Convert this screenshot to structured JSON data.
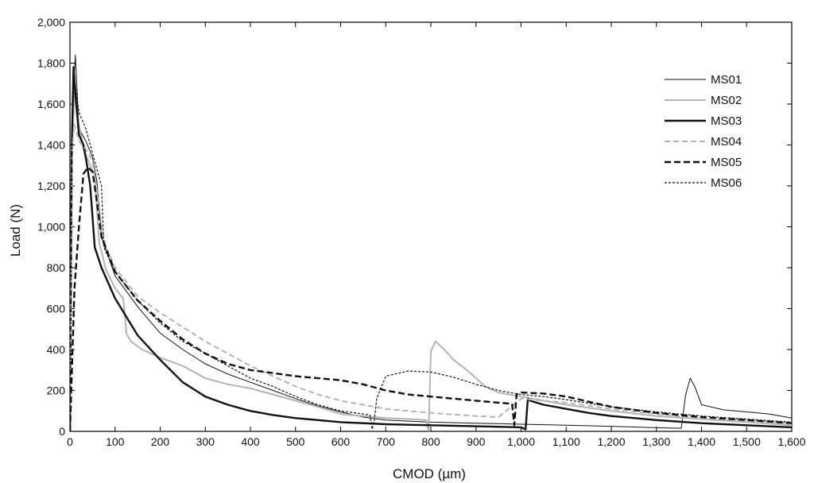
{
  "chart_data": {
    "type": "line",
    "xlabel": "CMOD (µm)",
    "ylabel": "Load (N)",
    "xlim": [
      0,
      1600
    ],
    "ylim": [
      0,
      2000
    ],
    "x_ticks": [
      0,
      100,
      200,
      300,
      400,
      500,
      600,
      700,
      800,
      900,
      1000,
      1100,
      1200,
      1300,
      1400,
      1500,
      1600
    ],
    "x_tick_labels": [
      "0",
      "100",
      "200",
      "300",
      "400",
      "500",
      "600",
      "700",
      "800",
      "900",
      "1,000",
      "1,100",
      "1,200",
      "1,300",
      "1,400",
      "1,500",
      "1,600"
    ],
    "y_ticks": [
      0,
      200,
      400,
      600,
      800,
      1000,
      1200,
      1400,
      1600,
      1800,
      2000
    ],
    "y_tick_labels": [
      "0",
      "200",
      "400",
      "600",
      "800",
      "1,000",
      "1,200",
      "1,400",
      "1,600",
      "1,800",
      "2,000"
    ],
    "grid": false,
    "legend_position": "top-right",
    "series": [
      {
        "name": "MS01",
        "color": "#111111",
        "style": "thin-solid",
        "points": [
          [
            0,
            0
          ],
          [
            6,
            1600
          ],
          [
            12,
            1840
          ],
          [
            20,
            1480
          ],
          [
            35,
            1420
          ],
          [
            50,
            1340
          ],
          [
            60,
            1220
          ],
          [
            70,
            950
          ],
          [
            100,
            760
          ],
          [
            150,
            610
          ],
          [
            200,
            480
          ],
          [
            250,
            400
          ],
          [
            300,
            330
          ],
          [
            350,
            280
          ],
          [
            400,
            240
          ],
          [
            450,
            200
          ],
          [
            500,
            160
          ],
          [
            550,
            125
          ],
          [
            600,
            95
          ],
          [
            650,
            70
          ],
          [
            700,
            55
          ],
          [
            800,
            45
          ],
          [
            900,
            40
          ],
          [
            1000,
            35
          ],
          [
            1100,
            30
          ],
          [
            1200,
            25
          ],
          [
            1300,
            18
          ],
          [
            1355,
            15
          ],
          [
            1365,
            180
          ],
          [
            1375,
            260
          ],
          [
            1385,
            220
          ],
          [
            1400,
            130
          ],
          [
            1450,
            105
          ],
          [
            1500,
            95
          ],
          [
            1550,
            85
          ],
          [
            1600,
            65
          ]
        ]
      },
      {
        "name": "MS02",
        "color": "#b3b3b3",
        "style": "solid",
        "points": [
          [
            0,
            0
          ],
          [
            5,
            1400
          ],
          [
            10,
            1650
          ],
          [
            20,
            1500
          ],
          [
            30,
            1380
          ],
          [
            45,
            1300
          ],
          [
            55,
            1250
          ],
          [
            65,
            920
          ],
          [
            80,
            790
          ],
          [
            100,
            700
          ],
          [
            118,
            650
          ],
          [
            122,
            560
          ],
          [
            125,
            480
          ],
          [
            135,
            440
          ],
          [
            160,
            400
          ],
          [
            200,
            360
          ],
          [
            250,
            320
          ],
          [
            300,
            260
          ],
          [
            350,
            230
          ],
          [
            400,
            210
          ],
          [
            450,
            180
          ],
          [
            500,
            150
          ],
          [
            550,
            120
          ],
          [
            600,
            85
          ],
          [
            650,
            75
          ],
          [
            700,
            65
          ],
          [
            750,
            60
          ],
          [
            790,
            55
          ],
          [
            795,
            0
          ],
          [
            800,
            390
          ],
          [
            810,
            440
          ],
          [
            830,
            400
          ],
          [
            850,
            350
          ],
          [
            880,
            300
          ],
          [
            920,
            220
          ],
          [
            950,
            190
          ],
          [
            1000,
            170
          ],
          [
            1050,
            150
          ],
          [
            1100,
            130
          ],
          [
            1200,
            100
          ],
          [
            1300,
            75
          ],
          [
            1400,
            60
          ],
          [
            1500,
            45
          ],
          [
            1600,
            30
          ]
        ]
      },
      {
        "name": "MS03",
        "color": "#111111",
        "style": "thick-solid",
        "points": [
          [
            0,
            0
          ],
          [
            4,
            1400
          ],
          [
            8,
            1780
          ],
          [
            14,
            1600
          ],
          [
            20,
            1450
          ],
          [
            30,
            1400
          ],
          [
            38,
            1300
          ],
          [
            45,
            1200
          ],
          [
            55,
            900
          ],
          [
            70,
            800
          ],
          [
            100,
            650
          ],
          [
            150,
            470
          ],
          [
            200,
            350
          ],
          [
            250,
            240
          ],
          [
            300,
            170
          ],
          [
            350,
            130
          ],
          [
            400,
            100
          ],
          [
            450,
            80
          ],
          [
            500,
            65
          ],
          [
            550,
            55
          ],
          [
            600,
            45
          ],
          [
            700,
            35
          ],
          [
            800,
            30
          ],
          [
            900,
            25
          ],
          [
            1000,
            20
          ],
          [
            1010,
            10
          ],
          [
            1015,
            160
          ],
          [
            1020,
            150
          ],
          [
            1050,
            130
          ],
          [
            1100,
            110
          ],
          [
            1150,
            90
          ],
          [
            1200,
            75
          ],
          [
            1300,
            55
          ],
          [
            1400,
            40
          ],
          [
            1500,
            30
          ],
          [
            1600,
            20
          ]
        ]
      },
      {
        "name": "MS04",
        "color": "#b3b3b3",
        "style": "dashed",
        "points": [
          [
            0,
            0
          ],
          [
            5,
            1400
          ],
          [
            10,
            1500
          ],
          [
            20,
            1420
          ],
          [
            35,
            1380
          ],
          [
            50,
            1320
          ],
          [
            60,
            1180
          ],
          [
            70,
            1000
          ],
          [
            80,
            900
          ],
          [
            100,
            800
          ],
          [
            150,
            660
          ],
          [
            200,
            580
          ],
          [
            250,
            510
          ],
          [
            300,
            440
          ],
          [
            350,
            380
          ],
          [
            400,
            320
          ],
          [
            450,
            270
          ],
          [
            500,
            220
          ],
          [
            550,
            180
          ],
          [
            600,
            150
          ],
          [
            650,
            130
          ],
          [
            700,
            110
          ],
          [
            800,
            90
          ],
          [
            900,
            75
          ],
          [
            950,
            70
          ],
          [
            1000,
            160
          ],
          [
            1050,
            150
          ],
          [
            1100,
            140
          ],
          [
            1200,
            110
          ],
          [
            1300,
            85
          ],
          [
            1400,
            65
          ],
          [
            1500,
            55
          ],
          [
            1600,
            40
          ]
        ]
      },
      {
        "name": "MS05",
        "color": "#111111",
        "style": "thick-dashed",
        "points": [
          [
            0,
            0
          ],
          [
            10,
            700
          ],
          [
            20,
            1000
          ],
          [
            30,
            1260
          ],
          [
            40,
            1290
          ],
          [
            50,
            1270
          ],
          [
            58,
            1150
          ],
          [
            70,
            950
          ],
          [
            100,
            780
          ],
          [
            150,
            640
          ],
          [
            200,
            540
          ],
          [
            250,
            450
          ],
          [
            300,
            380
          ],
          [
            350,
            330
          ],
          [
            400,
            300
          ],
          [
            450,
            285
          ],
          [
            500,
            270
          ],
          [
            550,
            260
          ],
          [
            600,
            250
          ],
          [
            650,
            230
          ],
          [
            700,
            200
          ],
          [
            750,
            180
          ],
          [
            800,
            170
          ],
          [
            850,
            160
          ],
          [
            900,
            150
          ],
          [
            950,
            140
          ],
          [
            980,
            135
          ],
          [
            985,
            30
          ],
          [
            990,
            180
          ],
          [
            1000,
            190
          ],
          [
            1050,
            185
          ],
          [
            1100,
            170
          ],
          [
            1200,
            120
          ],
          [
            1300,
            90
          ],
          [
            1400,
            70
          ],
          [
            1500,
            55
          ],
          [
            1600,
            40
          ]
        ]
      },
      {
        "name": "MS06",
        "color": "#111111",
        "style": "dotted",
        "points": [
          [
            0,
            0
          ],
          [
            5,
            1500
          ],
          [
            10,
            1720
          ],
          [
            20,
            1560
          ],
          [
            35,
            1480
          ],
          [
            50,
            1360
          ],
          [
            60,
            1280
          ],
          [
            70,
            1200
          ],
          [
            75,
            900
          ],
          [
            100,
            780
          ],
          [
            150,
            640
          ],
          [
            200,
            530
          ],
          [
            250,
            440
          ],
          [
            300,
            380
          ],
          [
            350,
            320
          ],
          [
            400,
            260
          ],
          [
            450,
            220
          ],
          [
            500,
            170
          ],
          [
            550,
            130
          ],
          [
            600,
            100
          ],
          [
            650,
            85
          ],
          [
            665,
            80
          ],
          [
            670,
            10
          ],
          [
            675,
            60
          ],
          [
            680,
            160
          ],
          [
            700,
            270
          ],
          [
            750,
            295
          ],
          [
            800,
            290
          ],
          [
            850,
            265
          ],
          [
            900,
            230
          ],
          [
            950,
            200
          ],
          [
            1000,
            180
          ],
          [
            1050,
            170
          ],
          [
            1100,
            155
          ],
          [
            1200,
            120
          ],
          [
            1300,
            95
          ],
          [
            1400,
            75
          ],
          [
            1500,
            60
          ],
          [
            1600,
            45
          ]
        ]
      }
    ]
  }
}
